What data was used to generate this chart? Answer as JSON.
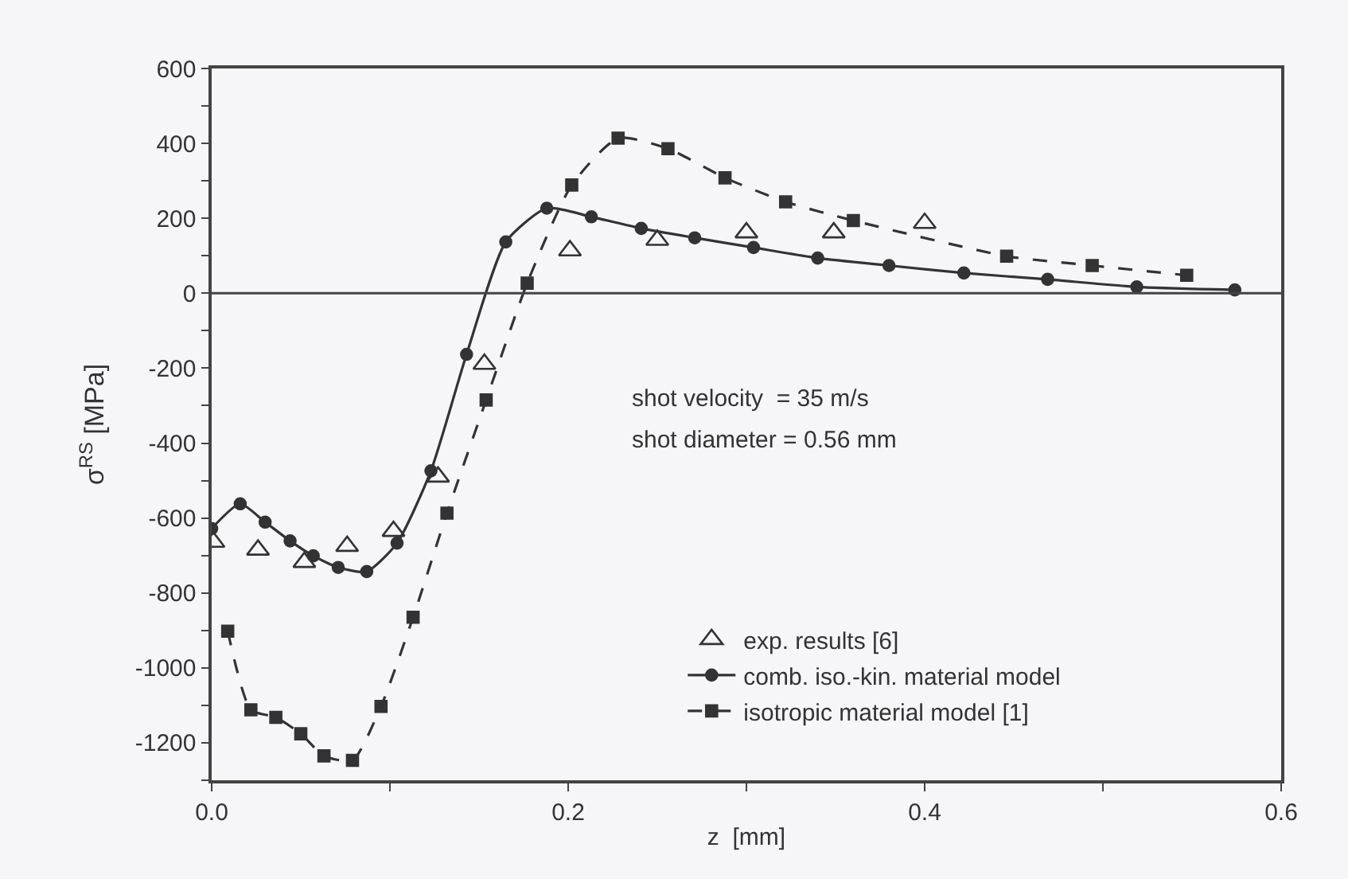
{
  "chart_data": {
    "type": "line",
    "xlabel": "z  [mm]",
    "ylabel": "σ$^{RS}$ [MPa]",
    "xlim": [
      0,
      0.6
    ],
    "ylim": [
      -1300,
      600
    ],
    "xticks": [
      {
        "value": 0,
        "label": "0.0"
      },
      {
        "value": 0.1,
        "label": null
      },
      {
        "value": 0.2,
        "label": "0.2"
      },
      {
        "value": 0.3,
        "label": null
      },
      {
        "value": 0.4,
        "label": "0.4"
      },
      {
        "value": 0.5,
        "label": null
      },
      {
        "value": 0.6,
        "label": "0.6"
      }
    ],
    "yticks": [
      {
        "value": -1300,
        "label": null
      },
      -1200,
      {
        "value": -1100,
        "label": null
      },
      -1000,
      {
        "value": -900,
        "label": null
      },
      -800,
      {
        "value": -700,
        "label": null
      },
      -600,
      {
        "value": -500,
        "label": null
      },
      -400,
      {
        "value": -300,
        "label": null
      },
      -200,
      {
        "value": -100,
        "label": null
      },
      0,
      {
        "value": 100,
        "label": null
      },
      200,
      {
        "value": 300,
        "label": null
      },
      400,
      {
        "value": 500,
        "label": null
      },
      600
    ],
    "grid": false,
    "legend": "bottom",
    "ref_lines": [
      {
        "axis": "y",
        "value": 0,
        "color": "#444444"
      }
    ],
    "annotations": [
      "shot velocity  = 35 m/s",
      "shot diameter = 0.56 mm"
    ],
    "series": [
      {
        "name": "exp. results [6]",
        "type": "scatter",
        "marker": "triangle",
        "color": "#333333",
        "x": [
          0.001,
          0.026,
          0.052,
          0.076,
          0.102,
          0.127,
          0.153,
          0.201,
          0.25,
          0.3,
          0.349,
          0.4
        ],
        "values": [
          -664,
          -685,
          -718,
          -675,
          -635,
          -490,
          -189,
          114,
          142,
          162,
          162,
          187
        ]
      },
      {
        "name": "comb. iso.-kin. material model",
        "marker": "circle",
        "line_style": "solid",
        "color": "#333333",
        "x": [
          0.0,
          0.016,
          0.03,
          0.044,
          0.057,
          0.071,
          0.087,
          0.104,
          0.123,
          0.143,
          0.165,
          0.188,
          0.213,
          0.241,
          0.271,
          0.304,
          0.34,
          0.38,
          0.422,
          0.469,
          0.519,
          0.574
        ],
        "values": [
          -628,
          -562,
          -611,
          -661,
          -701,
          -732,
          -743,
          -667,
          -474,
          -163,
          137,
          227,
          204,
          173,
          148,
          122,
          94,
          74,
          54,
          37,
          17,
          9
        ]
      },
      {
        "name": "isotropic material model [1]",
        "marker": "square",
        "line_style": "dashed",
        "color": "#333333",
        "x": [
          0.009,
          0.022,
          0.036,
          0.05,
          0.063,
          0.079,
          0.095,
          0.113,
          0.132,
          0.154,
          0.177,
          0.202,
          0.228,
          0.256,
          0.288,
          0.322,
          0.36,
          0.446,
          0.494,
          0.547
        ],
        "values": [
          -902,
          -1112,
          -1132,
          -1176,
          -1235,
          -1247,
          -1103,
          -865,
          -587,
          -285,
          27,
          289,
          414,
          386,
          308,
          244,
          194,
          99,
          74,
          48
        ]
      }
    ]
  }
}
